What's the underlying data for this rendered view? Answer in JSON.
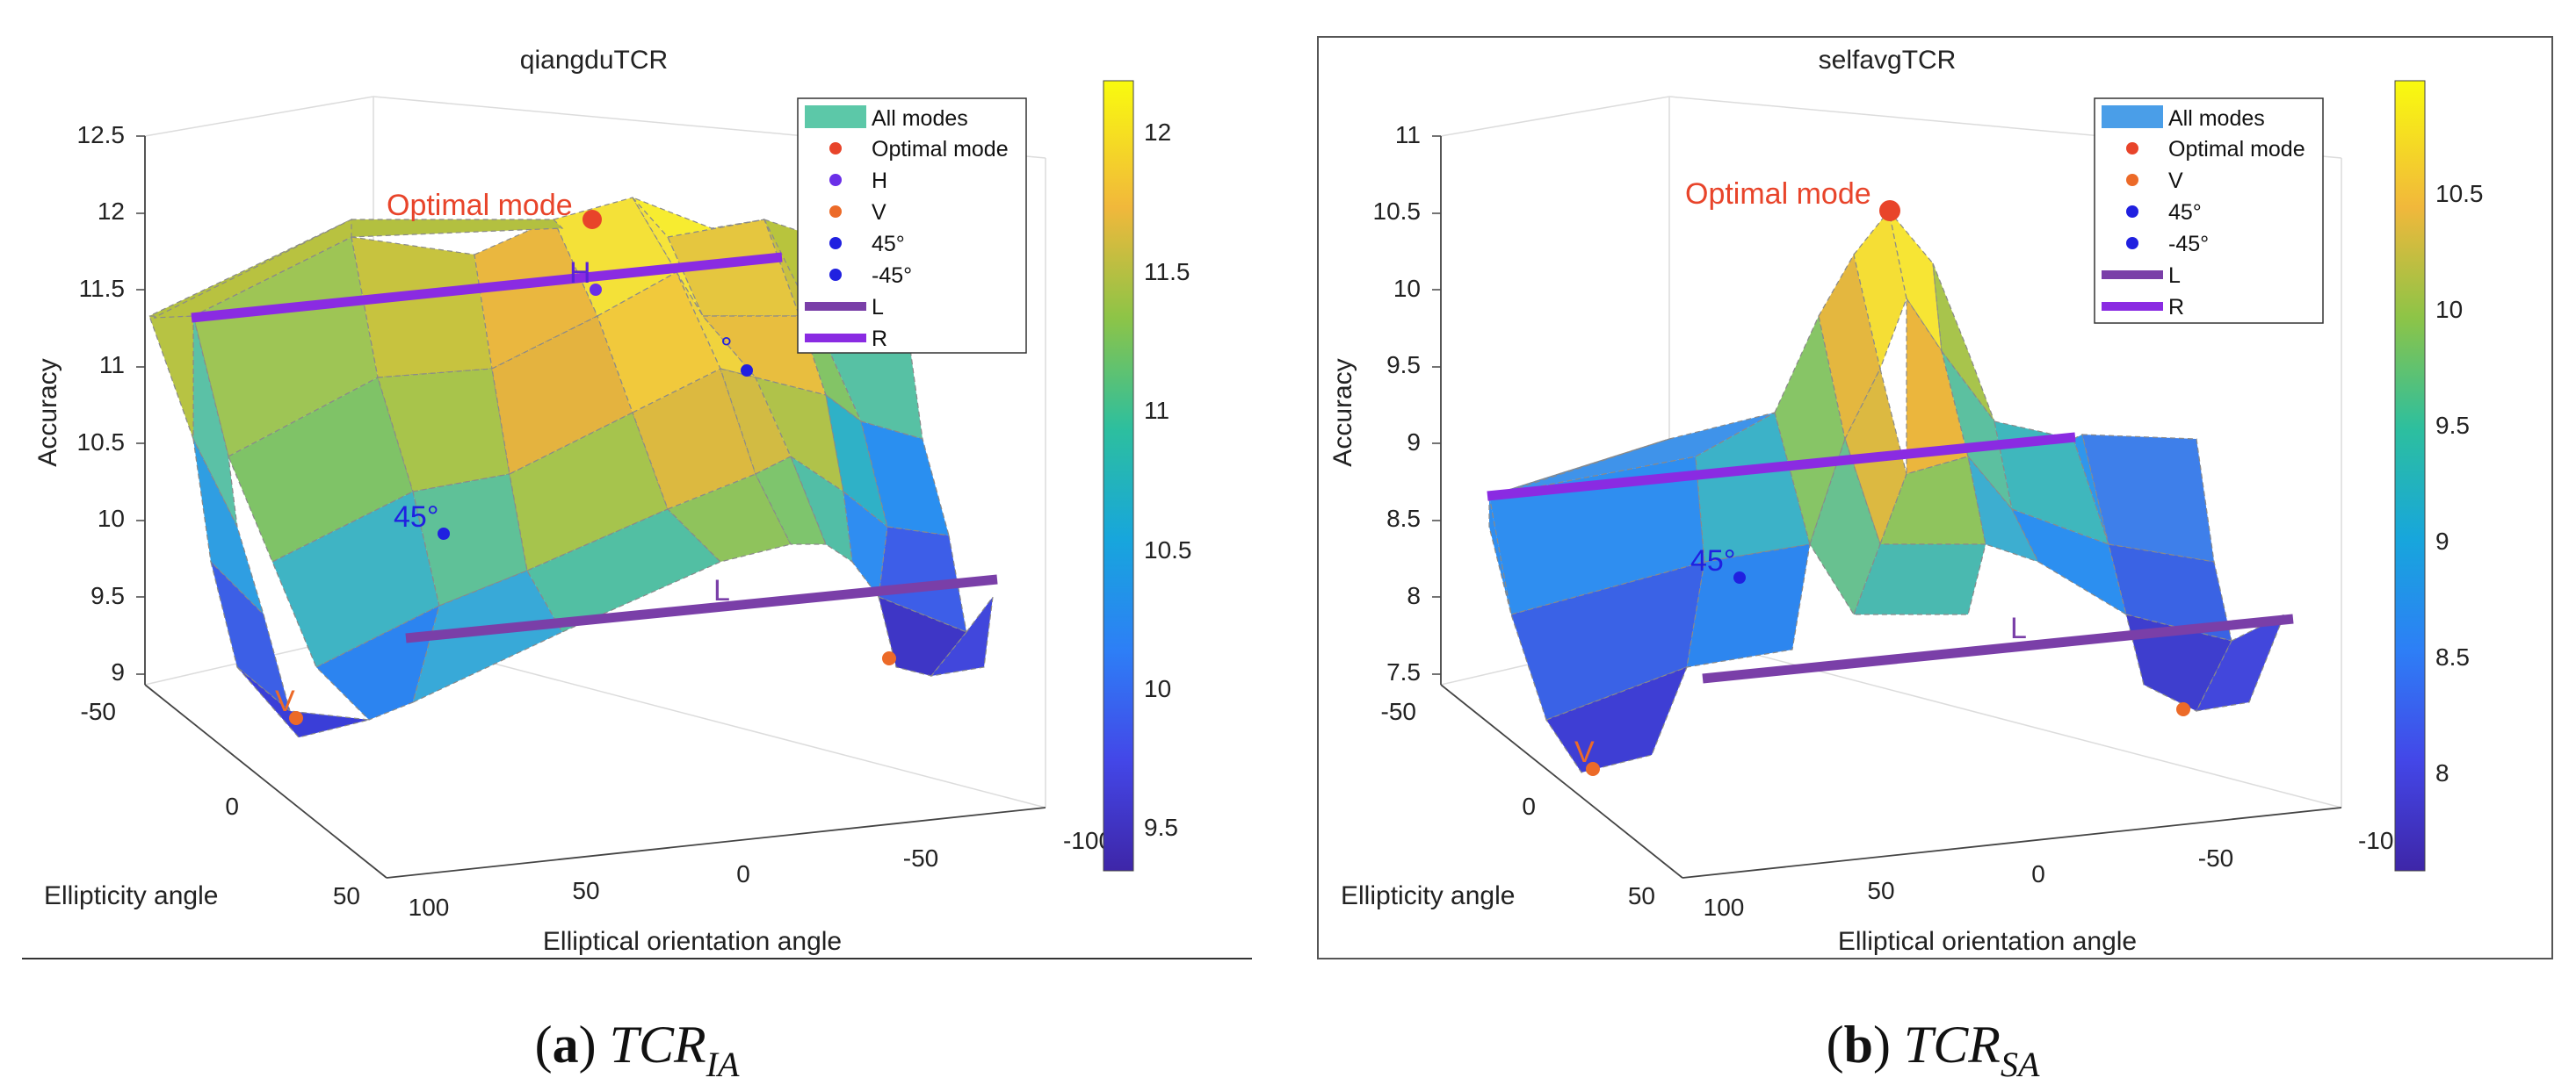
{
  "chart_data": [
    {
      "type": "surface3d",
      "title": "qiangduTCR",
      "zlabel": "Accuracy",
      "xlabel": "Elliptical orientation angle",
      "ylabel": "Ellipticity angle",
      "zticks": [
        "9",
        "9.5",
        "10",
        "10.5",
        "11",
        "11.5",
        "12",
        "12.5"
      ],
      "xticks": [
        "100",
        "50",
        "0",
        "-50",
        "-100"
      ],
      "yticks": [
        "-50",
        "0",
        "50"
      ],
      "colorbar_ticks": [
        "9.5",
        "10",
        "10.5",
        "11",
        "11.5",
        "12"
      ],
      "colorbar_range": [
        9.3,
        12.2
      ],
      "legend": [
        {
          "label": "All modes",
          "kind": "patch",
          "color": "#5cc8a8"
        },
        {
          "label": "Optimal mode",
          "kind": "dot",
          "color": "#e8442a"
        },
        {
          "label": "H",
          "kind": "dot",
          "color": "#6a2fe8"
        },
        {
          "label": "V",
          "kind": "dot",
          "color": "#ec6a28"
        },
        {
          "label": "45°",
          "kind": "dot",
          "color": "#2020e0"
        },
        {
          "label": "-45°",
          "kind": "dot",
          "color": "#2020e0"
        },
        {
          "label": "L",
          "kind": "line",
          "color": "#7a3fa8"
        },
        {
          "label": "R",
          "kind": "line",
          "color": "#8a2be2"
        }
      ],
      "annotations": [
        {
          "text": "Optimal mode",
          "color": "#e8442a"
        },
        {
          "text": "H",
          "color": "#5a22d8"
        },
        {
          "text": "45°",
          "color": "#2020e0"
        },
        {
          "text": "°",
          "color": "#2020e0"
        },
        {
          "text": "V",
          "color": "#ec6a28"
        },
        {
          "text": "L",
          "color": "#7a3fa8"
        }
      ],
      "points": {
        "optimal": {
          "orientation": 0,
          "ellipticity": 0,
          "accuracy": 12.0
        },
        "H": {
          "orientation": 0,
          "ellipticity": 0,
          "accuracy": 11.6
        },
        "V": {
          "orientation": 90,
          "ellipticity": 0,
          "accuracy": 9.3
        },
        "plus45": {
          "orientation": 45,
          "ellipticity": 0,
          "accuracy": 10.0
        },
        "minus45": {
          "orientation": -45,
          "ellipticity": 0,
          "accuracy": 11.1
        },
        "L_level": 9.6,
        "R_level": 11.4
      },
      "caption": {
        "letter": "a",
        "name": "TCR",
        "sub": "IA"
      }
    },
    {
      "type": "surface3d",
      "title": "selfavgTCR",
      "zlabel": "Accuracy",
      "xlabel": "Elliptical orientation angle",
      "ylabel": "Ellipticity angle",
      "zticks": [
        "7.5",
        "8",
        "8.5",
        "9",
        "9.5",
        "10",
        "10.5",
        "11"
      ],
      "xticks": [
        "100",
        "50",
        "0",
        "-50",
        "-100"
      ],
      "yticks": [
        "-50",
        "0",
        "50"
      ],
      "colorbar_ticks": [
        "8",
        "8.5",
        "9",
        "9.5",
        "10",
        "10.5"
      ],
      "colorbar_range": [
        7.6,
        11.0
      ],
      "legend": [
        {
          "label": "All modes",
          "kind": "patch",
          "color": "#4a9ee8"
        },
        {
          "label": "Optimal mode",
          "kind": "dot",
          "color": "#e8442a"
        },
        {
          "label": "V",
          "kind": "dot",
          "color": "#ec6a28"
        },
        {
          "label": "45°",
          "kind": "dot",
          "color": "#2020e0"
        },
        {
          "label": "-45°",
          "kind": "dot",
          "color": "#2020e0"
        },
        {
          "label": "L",
          "kind": "line",
          "color": "#7a3fa8"
        },
        {
          "label": "R",
          "kind": "line",
          "color": "#8a2be2"
        }
      ],
      "annotations": [
        {
          "text": "Optimal mode",
          "color": "#e8442a"
        },
        {
          "text": "45°",
          "color": "#2020e0"
        },
        {
          "text": "V",
          "color": "#ec6a28"
        },
        {
          "text": "L",
          "color": "#7a3fa8"
        }
      ],
      "points": {
        "optimal": {
          "orientation": 0,
          "ellipticity": 0,
          "accuracy": 10.6
        },
        "V": {
          "orientation": 90,
          "ellipticity": 0,
          "accuracy": 7.6
        },
        "plus45": {
          "orientation": 45,
          "ellipticity": 0,
          "accuracy": 8.7
        },
        "L_level": 7.8,
        "R_level": 8.8
      },
      "caption": {
        "letter": "b",
        "name": "TCR",
        "sub": "SA"
      }
    }
  ]
}
